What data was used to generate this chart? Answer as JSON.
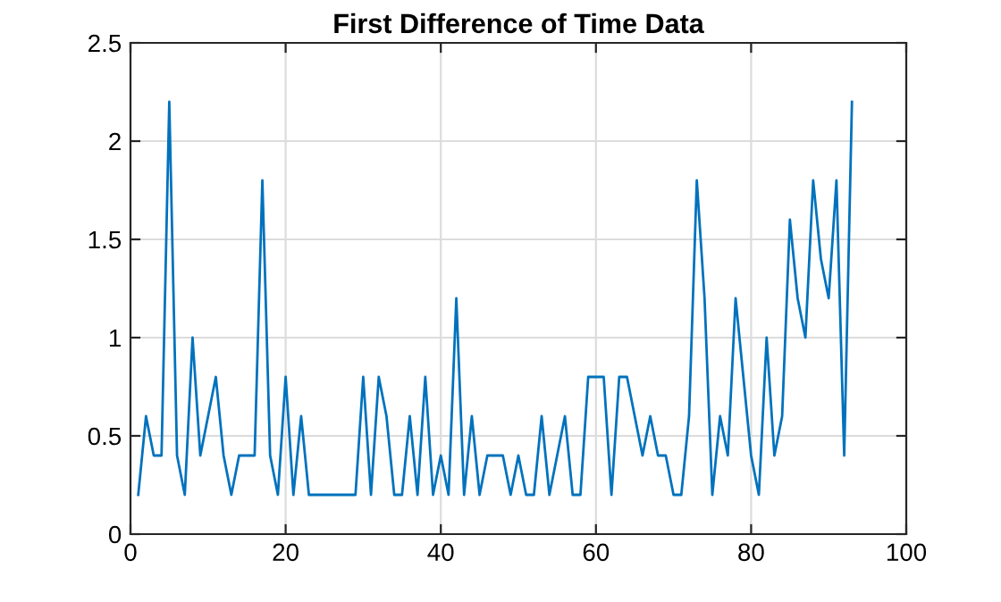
{
  "chart_data": {
    "type": "line",
    "title": "First Difference of Time Data",
    "x": [
      1,
      2,
      3,
      4,
      5,
      6,
      7,
      8,
      9,
      10,
      11,
      12,
      13,
      14,
      15,
      16,
      17,
      18,
      19,
      20,
      21,
      22,
      23,
      24,
      25,
      26,
      27,
      28,
      29,
      30,
      31,
      32,
      33,
      34,
      35,
      36,
      37,
      38,
      39,
      40,
      41,
      42,
      43,
      44,
      45,
      46,
      47,
      48,
      49,
      50,
      51,
      52,
      53,
      54,
      55,
      56,
      57,
      58,
      59,
      60,
      61,
      62,
      63,
      64,
      65,
      66,
      67,
      68,
      69,
      70,
      71,
      72,
      73,
      74,
      75,
      76,
      77,
      78,
      79,
      80,
      81,
      82,
      83,
      84,
      85,
      86,
      87,
      88,
      89,
      90,
      91,
      92,
      93
    ],
    "series": [
      {
        "color": "#0072bd",
        "values": [
          0.2,
          0.6,
          0.4,
          0.4,
          2.2,
          0.4,
          0.2,
          1.0,
          0.4,
          0.6,
          0.8,
          0.4,
          0.2,
          0.4,
          0.4,
          0.4,
          1.8,
          0.4,
          0.2,
          0.8,
          0.2,
          0.6,
          0.2,
          0.2,
          0.2,
          0.2,
          0.2,
          0.2,
          0.2,
          0.8,
          0.2,
          0.8,
          0.6,
          0.2,
          0.2,
          0.6,
          0.2,
          0.8,
          0.2,
          0.4,
          0.2,
          1.2,
          0.2,
          0.6,
          0.2,
          0.4,
          0.4,
          0.4,
          0.2,
          0.4,
          0.2,
          0.2,
          0.6,
          0.2,
          0.4,
          0.6,
          0.2,
          0.2,
          0.8,
          0.8,
          0.8,
          0.2,
          0.8,
          0.8,
          0.6,
          0.4,
          0.6,
          0.4,
          0.4,
          0.2,
          0.2,
          0.6,
          1.8,
          1.2,
          0.2,
          0.6,
          0.4,
          1.2,
          0.8,
          0.4,
          0.2,
          1.0,
          0.4,
          0.6,
          1.6,
          1.2,
          1.0,
          1.8,
          1.4,
          1.2,
          1.8,
          0.4,
          2.2
        ]
      }
    ],
    "xlim": [
      0,
      100
    ],
    "xticks": [
      0,
      20,
      40,
      60,
      80,
      100
    ],
    "ylim": [
      0,
      2.5
    ],
    "yticks": [
      0,
      0.5,
      1,
      1.5,
      2,
      2.5
    ],
    "grid": true,
    "marker": "none",
    "line_style": "solid"
  }
}
